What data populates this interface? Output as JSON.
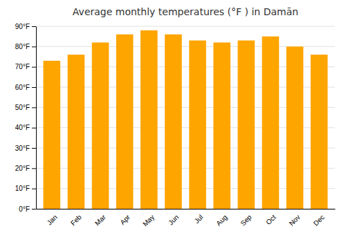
{
  "chart_data": {
    "type": "bar",
    "title": "Average monthly temperatures (°F ) in Damān",
    "categories": [
      "Jan",
      "Feb",
      "Mar",
      "Apr",
      "May",
      "Jun",
      "Jul",
      "Aug",
      "Sep",
      "Oct",
      "Nov",
      "Dec"
    ],
    "values": [
      73,
      76,
      82,
      86,
      88,
      86,
      83,
      82,
      83,
      85,
      80,
      76
    ],
    "color": "#FFA500",
    "ylim": [
      0,
      90
    ],
    "yticks": [
      {
        "value": 0,
        "label": "0°F"
      },
      {
        "value": 10,
        "label": "10°F"
      },
      {
        "value": 20,
        "label": "20°F"
      },
      {
        "value": 30,
        "label": "30°F"
      },
      {
        "value": 40,
        "label": "40°F"
      },
      {
        "value": 50,
        "label": "50°F"
      },
      {
        "value": 60,
        "label": "60°F"
      },
      {
        "value": 70,
        "label": "70°F"
      },
      {
        "value": 80,
        "label": "80°F"
      },
      {
        "value": 90,
        "label": "90°F"
      }
    ],
    "grid": true
  }
}
